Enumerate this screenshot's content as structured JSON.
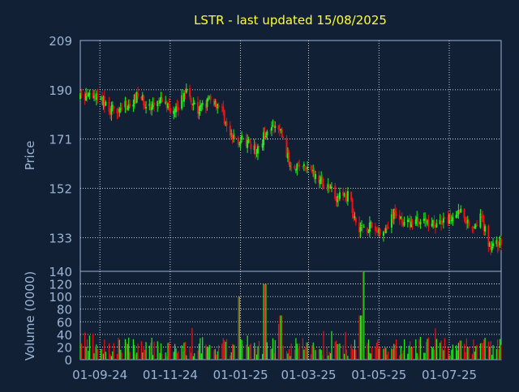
{
  "chart_data": {
    "type": "candlestick",
    "title": "LSTR - last updated 15/08/2025",
    "price_panel": {
      "ylabel": "Price",
      "ylim": [
        120,
        209
      ],
      "yticks": [
        209,
        190,
        171,
        152,
        133
      ],
      "grid": true
    },
    "volume_panel": {
      "ylabel": "Volume (0000)",
      "ylim": [
        0,
        140
      ],
      "yticks": [
        140,
        120,
        100,
        80,
        60,
        40,
        20,
        0
      ],
      "grid": true
    },
    "x_axis": {
      "start": "2024-08-15",
      "end": "2025-08-15",
      "ticks": [
        "01-09-24",
        "01-11-24",
        "01-01-25",
        "01-03-25",
        "01-05-25",
        "01-07-25"
      ],
      "tick_dates": [
        "2024-09-01",
        "2024-11-01",
        "2025-01-01",
        "2025-03-01",
        "2025-05-01",
        "2025-07-01"
      ]
    },
    "price_path": [
      {
        "date": "2024-08-15",
        "close": 187
      },
      {
        "date": "2024-09-01",
        "close": 187
      },
      {
        "date": "2024-09-10",
        "close": 182
      },
      {
        "date": "2024-09-25",
        "close": 184
      },
      {
        "date": "2024-10-05",
        "close": 188
      },
      {
        "date": "2024-10-15",
        "close": 182
      },
      {
        "date": "2024-10-25",
        "close": 186
      },
      {
        "date": "2024-11-05",
        "close": 181
      },
      {
        "date": "2024-11-15",
        "close": 190
      },
      {
        "date": "2024-11-25",
        "close": 182
      },
      {
        "date": "2024-12-05",
        "close": 186
      },
      {
        "date": "2024-12-15",
        "close": 184
      },
      {
        "date": "2024-12-22",
        "close": 172
      },
      {
        "date": "2025-01-05",
        "close": 170
      },
      {
        "date": "2025-01-15",
        "close": 166
      },
      {
        "date": "2025-01-25",
        "close": 176
      },
      {
        "date": "2025-02-05",
        "close": 174
      },
      {
        "date": "2025-02-12",
        "close": 162
      },
      {
        "date": "2025-02-25",
        "close": 160
      },
      {
        "date": "2025-03-10",
        "close": 156
      },
      {
        "date": "2025-03-25",
        "close": 149
      },
      {
        "date": "2025-04-05",
        "close": 149
      },
      {
        "date": "2025-04-12",
        "close": 137
      },
      {
        "date": "2025-04-25",
        "close": 137
      },
      {
        "date": "2025-05-05",
        "close": 134
      },
      {
        "date": "2025-05-15",
        "close": 143
      },
      {
        "date": "2025-05-25",
        "close": 138
      },
      {
        "date": "2025-06-05",
        "close": 140
      },
      {
        "date": "2025-06-20",
        "close": 138
      },
      {
        "date": "2025-07-01",
        "close": 140
      },
      {
        "date": "2025-07-10",
        "close": 144
      },
      {
        "date": "2025-07-20",
        "close": 137
      },
      {
        "date": "2025-07-28",
        "close": 141
      },
      {
        "date": "2025-08-05",
        "close": 130
      },
      {
        "date": "2025-08-15",
        "close": 131
      }
    ],
    "volume_spikes": [
      {
        "date": "2024-12-30",
        "volume": 100
      },
      {
        "date": "2025-01-22",
        "volume": 120
      },
      {
        "date": "2025-02-05",
        "volume": 70
      },
      {
        "date": "2025-04-18",
        "volume": 140
      },
      {
        "date": "2025-04-15",
        "volume": 70
      }
    ],
    "colors": {
      "background": "#112035",
      "grid": "#ffffff",
      "axis_text": "#9bb5d6",
      "title": "#ffff33",
      "up": "#22ee22",
      "down": "#ee1111",
      "frame": "#9bb5d6"
    }
  }
}
